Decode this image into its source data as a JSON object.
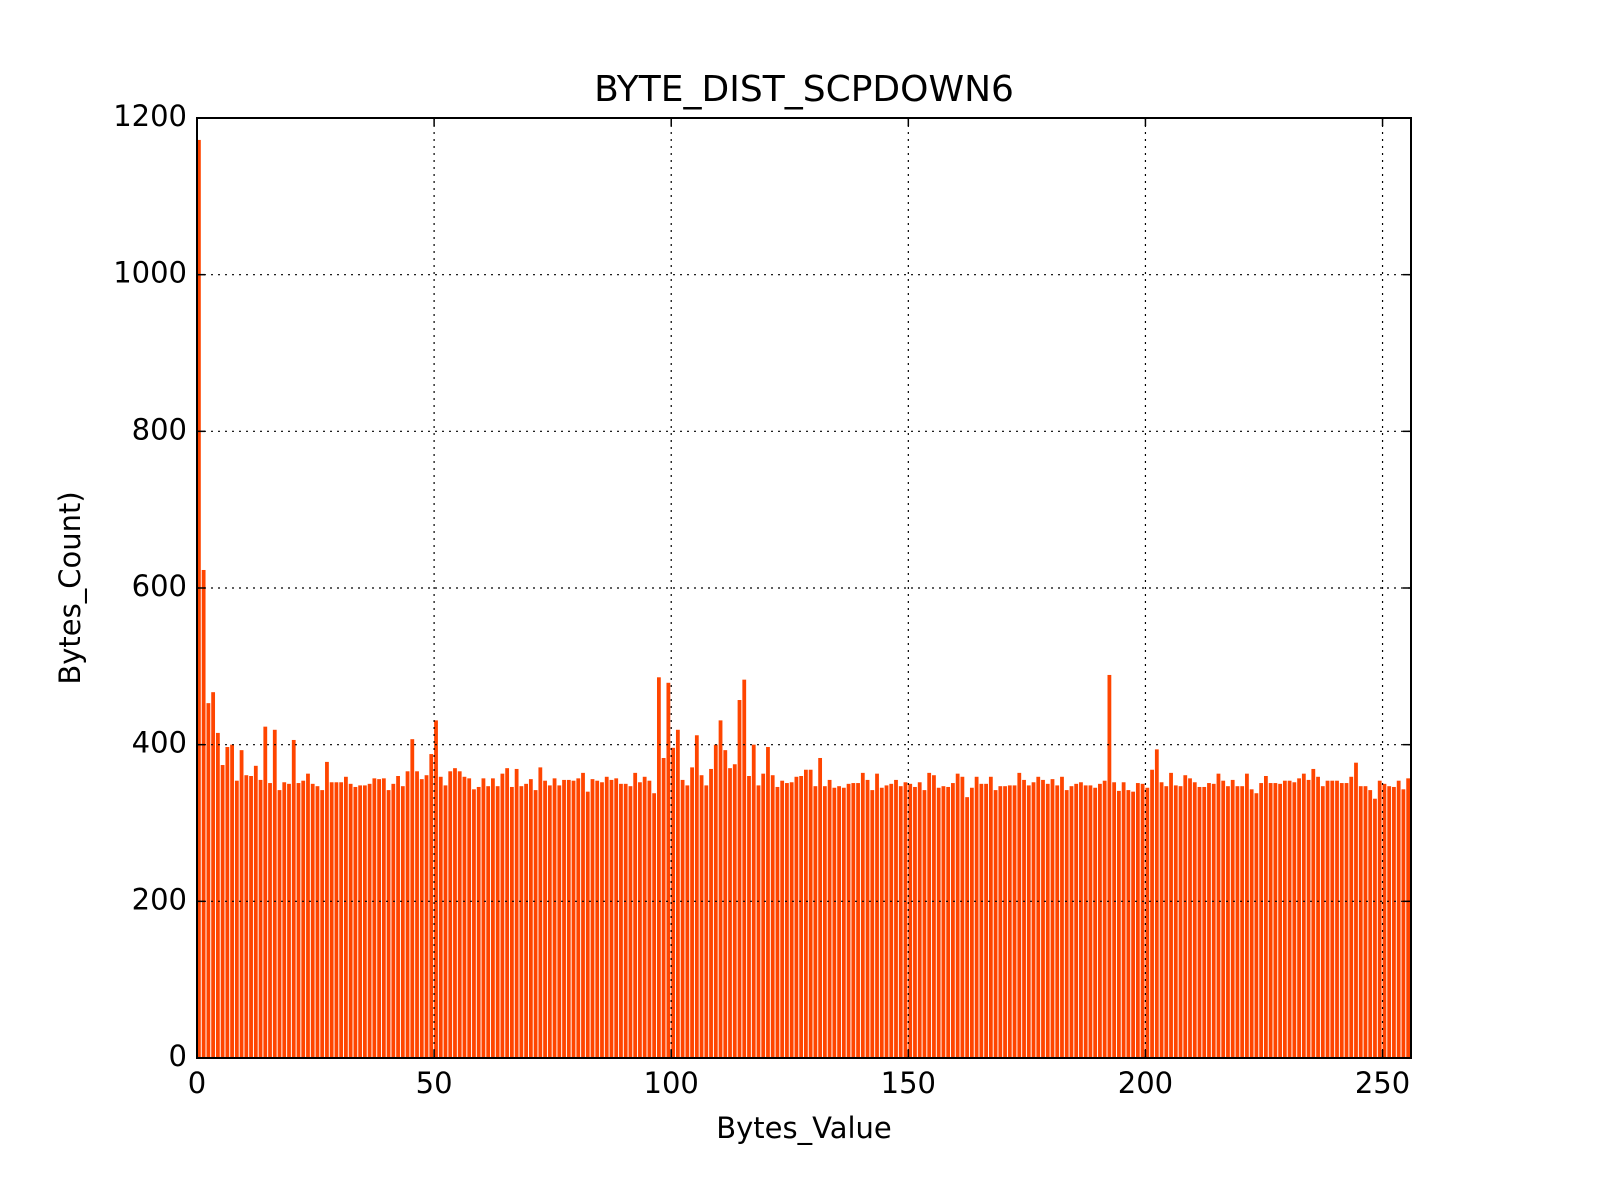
{
  "chart_data": {
    "type": "bar",
    "title": "BYTE_DIST_SCPDOWN6",
    "x_label": "Bytes_Value",
    "y_label": "Bytes_Count)",
    "color": "#ff4500",
    "grid": true,
    "xlim": [
      0,
      256
    ],
    "xticks": [
      0,
      50,
      100,
      150,
      200,
      250
    ],
    "ylim": [
      0,
      1200
    ],
    "yticks": [
      0,
      200,
      400,
      600,
      800,
      1000,
      1200
    ],
    "x": [
      0,
      1,
      2,
      3,
      4,
      5,
      6,
      7,
      8,
      9,
      10,
      11,
      12,
      13,
      14,
      15,
      16,
      17,
      18,
      19,
      20,
      21,
      22,
      23,
      24,
      25,
      26,
      27,
      28,
      29,
      30,
      31,
      32,
      33,
      34,
      35,
      36,
      37,
      38,
      39,
      40,
      41,
      42,
      43,
      44,
      45,
      46,
      47,
      48,
      49,
      50,
      51,
      52,
      53,
      54,
      55,
      56,
      57,
      58,
      59,
      60,
      61,
      62,
      63,
      64,
      65,
      66,
      67,
      68,
      69,
      70,
      71,
      72,
      73,
      74,
      75,
      76,
      77,
      78,
      79,
      80,
      81,
      82,
      83,
      84,
      85,
      86,
      87,
      88,
      89,
      90,
      91,
      92,
      93,
      94,
      95,
      96,
      97,
      98,
      99,
      100,
      101,
      102,
      103,
      104,
      105,
      106,
      107,
      108,
      109,
      110,
      111,
      112,
      113,
      114,
      115,
      116,
      117,
      118,
      119,
      120,
      121,
      122,
      123,
      124,
      125,
      126,
      127,
      128,
      129,
      130,
      131,
      132,
      133,
      134,
      135,
      136,
      137,
      138,
      139,
      140,
      141,
      142,
      143,
      144,
      145,
      146,
      147,
      148,
      149,
      150,
      151,
      152,
      153,
      154,
      155,
      156,
      157,
      158,
      159,
      160,
      161,
      162,
      163,
      164,
      165,
      166,
      167,
      168,
      169,
      170,
      171,
      172,
      173,
      174,
      175,
      176,
      177,
      178,
      179,
      180,
      181,
      182,
      183,
      184,
      185,
      186,
      187,
      188,
      189,
      190,
      191,
      192,
      193,
      194,
      195,
      196,
      197,
      198,
      199,
      200,
      201,
      202,
      203,
      204,
      205,
      206,
      207,
      208,
      209,
      210,
      211,
      212,
      213,
      214,
      215,
      216,
      217,
      218,
      219,
      220,
      221,
      222,
      223,
      224,
      225,
      226,
      227,
      228,
      229,
      230,
      231,
      232,
      233,
      234,
      235,
      236,
      237,
      238,
      239,
      240,
      241,
      242,
      243,
      244,
      245,
      246,
      247,
      248,
      249,
      250,
      251,
      252,
      253,
      254,
      255
    ],
    "values": [
      1172,
      623,
      453,
      467,
      415,
      374,
      397,
      400,
      354,
      393,
      361,
      360,
      373,
      355,
      423,
      351,
      419,
      342,
      352,
      350,
      406,
      351,
      354,
      363,
      350,
      347,
      342,
      378,
      352,
      352,
      352,
      359,
      350,
      346,
      348,
      348,
      350,
      357,
      356,
      357,
      342,
      350,
      360,
      347,
      366,
      407,
      366,
      356,
      361,
      388,
      431,
      359,
      348,
      366,
      370,
      366,
      359,
      357,
      343,
      346,
      357,
      347,
      357,
      347,
      363,
      370,
      346,
      369,
      347,
      350,
      356,
      342,
      371,
      354,
      348,
      357,
      348,
      355,
      355,
      354,
      357,
      364,
      340,
      356,
      354,
      352,
      359,
      355,
      357,
      350,
      350,
      347,
      364,
      352,
      359,
      354,
      338,
      486,
      383,
      479,
      396,
      419,
      355,
      348,
      371,
      412,
      361,
      348,
      369,
      400,
      431,
      393,
      370,
      375,
      457,
      483,
      360,
      400,
      348,
      363,
      397,
      361,
      346,
      354,
      351,
      352,
      359,
      360,
      368,
      368,
      347,
      383,
      347,
      355,
      345,
      347,
      345,
      350,
      351,
      351,
      364,
      355,
      342,
      363,
      345,
      348,
      350,
      355,
      347,
      352,
      350,
      346,
      352,
      342,
      364,
      361,
      345,
      347,
      346,
      351,
      363,
      359,
      333,
      345,
      359,
      350,
      350,
      359,
      342,
      347,
      347,
      348,
      348,
      364,
      355,
      348,
      352,
      359,
      355,
      350,
      356,
      348,
      359,
      342,
      347,
      350,
      352,
      348,
      348,
      345,
      350,
      354,
      489,
      352,
      341,
      352,
      342,
      340,
      351,
      350,
      345,
      368,
      394,
      352,
      347,
      364,
      348,
      347,
      361,
      357,
      352,
      346,
      346,
      351,
      350,
      363,
      354,
      347,
      355,
      347,
      347,
      363,
      343,
      338,
      351,
      360,
      351,
      351,
      350,
      354,
      354,
      352,
      357,
      363,
      355,
      369,
      359,
      347,
      354,
      354,
      354,
      351,
      351,
      359,
      377,
      347,
      347,
      342,
      331,
      354,
      350,
      347,
      346,
      354,
      343,
      357
    ]
  }
}
